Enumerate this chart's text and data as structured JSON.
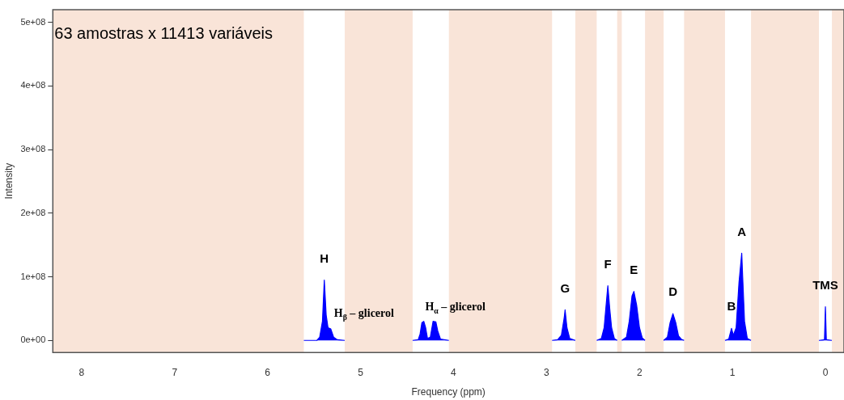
{
  "chart_data": {
    "type": "area",
    "xlabel": "Frequency (ppm)",
    "ylabel": "Intensity",
    "xlim": [
      8.31,
      -0.2
    ],
    "xticks": [
      8,
      7,
      6,
      5,
      4,
      3,
      2,
      1,
      0
    ],
    "ylim": [
      -19000000,
      520000000
    ],
    "yticks": [
      {
        "value": 0,
        "label": "0e+00"
      },
      {
        "value": 100000000,
        "label": "1e+08"
      },
      {
        "value": 200000000,
        "label": "2e+08"
      },
      {
        "value": 300000000,
        "label": "3e+08"
      },
      {
        "value": 400000000,
        "label": "4e+08"
      },
      {
        "value": 500000000,
        "label": "5e+08"
      }
    ],
    "grid": false,
    "legend": false,
    "marker": "none",
    "series": [
      {
        "color": "#0000ff",
        "x": [
          5.61,
          5.47,
          5.44,
          5.41,
          5.39,
          5.37,
          5.35,
          5.32,
          5.29,
          5.25,
          5.17,
          5.0,
          4.44,
          4.38,
          4.36,
          4.34,
          4.32,
          4.3,
          4.28,
          4.25,
          4.22,
          4.19,
          4.17,
          4.14,
          4.05,
          3.5,
          2.94,
          2.88,
          2.84,
          2.81,
          2.8,
          2.78,
          2.75,
          2.69,
          2.6,
          2.46,
          2.41,
          2.38,
          2.35,
          2.34,
          2.32,
          2.3,
          2.27,
          2.24,
          2.21,
          2.19,
          2.14,
          2.11,
          2.08,
          2.06,
          2.03,
          2.0,
          1.97,
          1.94,
          1.85,
          1.74,
          1.7,
          1.67,
          1.64,
          1.61,
          1.58,
          1.55,
          1.52,
          1.3,
          1.08,
          1.04,
          1.01,
          0.99,
          0.96,
          0.93,
          0.9,
          0.89,
          0.87,
          0.84,
          0.8,
          0.4,
          0.07,
          0.01,
          0,
          -0.01,
          -0.07
        ],
        "values": [
          0,
          0,
          5000000,
          30000000,
          95000000,
          40000000,
          20000000,
          18000000,
          5000000,
          1000000,
          0,
          null,
          0,
          1000000,
          10000000,
          28000000,
          30000000,
          20000000,
          3000000,
          5000000,
          30000000,
          29000000,
          15000000,
          2000000,
          0,
          null,
          0,
          1000000,
          8000000,
          35000000,
          48000000,
          20000000,
          3000000,
          0,
          null,
          0,
          3000000,
          20000000,
          70000000,
          86000000,
          50000000,
          20000000,
          3000000,
          0,
          null,
          0,
          5000000,
          30000000,
          70000000,
          77000000,
          55000000,
          20000000,
          4000000,
          0,
          null,
          0,
          5000000,
          28000000,
          42000000,
          28000000,
          7000000,
          2000000,
          0,
          null,
          0,
          2000000,
          19000000,
          8000000,
          20000000,
          90000000,
          137000000,
          100000000,
          30000000,
          3000000,
          0,
          null,
          0,
          1000000,
          53000000,
          1000000,
          0
        ]
      }
    ],
    "bands": [
      {
        "axis": "x",
        "from": 8.31,
        "to": 5.61,
        "color": "#f9e4d8"
      },
      {
        "axis": "x",
        "from": 5.17,
        "to": 4.44,
        "color": "#f9e4d8"
      },
      {
        "axis": "x",
        "from": 4.05,
        "to": 2.94,
        "color": "#f9e4d8"
      },
      {
        "axis": "x",
        "from": 2.69,
        "to": 2.46,
        "color": "#f9e4d8"
      },
      {
        "axis": "x",
        "from": 2.24,
        "to": 2.19,
        "color": "#f9e4d8"
      },
      {
        "axis": "x",
        "from": 1.94,
        "to": 1.74,
        "color": "#f9e4d8"
      },
      {
        "axis": "x",
        "from": 1.52,
        "to": 1.08,
        "color": "#f9e4d8"
      },
      {
        "axis": "x",
        "from": 0.8,
        "to": 0.07,
        "color": "#f9e4d8"
      },
      {
        "axis": "x",
        "from": -0.07,
        "to": -0.2,
        "color": "#f9e4d8"
      }
    ],
    "annotations": [
      "63 amostras x 11413 variáveis",
      {
        "text": "H",
        "x": 5.39,
        "y": 95000000
      },
      {
        "text": "H$_{β}$ – glicerol",
        "x": 5.32,
        "y": 18000000
      },
      {
        "text": "H$_{α}$ – glicerol",
        "x": 4.34,
        "y": 28000000
      },
      {
        "text": "G",
        "x": 2.8,
        "y": 48000000
      },
      {
        "text": "F",
        "x": 2.34,
        "y": 86000000
      },
      {
        "text": "E",
        "x": 2.06,
        "y": 77000000
      },
      {
        "text": "D",
        "x": 1.64,
        "y": 42000000
      },
      {
        "text": "B",
        "x": 1.01,
        "y": 19000000
      },
      {
        "text": "A",
        "x": 0.9,
        "y": 137000000
      },
      {
        "text": "TMS",
        "x": 0,
        "y": 53000000
      }
    ]
  }
}
